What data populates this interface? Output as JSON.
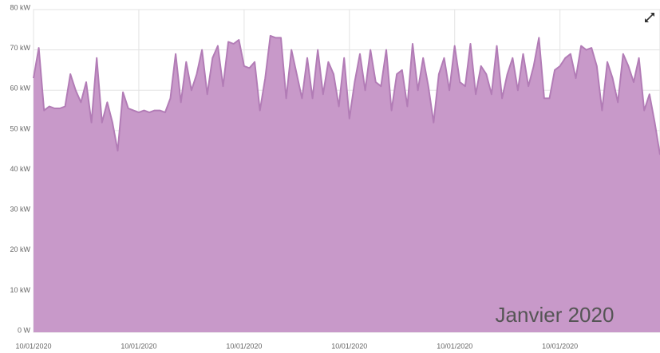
{
  "chart_data": {
    "type": "area",
    "annotation": "Janvier 2020",
    "color": "#c899c9",
    "line_color": "#b27cb6",
    "grid": true,
    "ylim": [
      0,
      80
    ],
    "yticks": [
      {
        "value": 0,
        "label": "0 W"
      },
      {
        "value": 10,
        "label": "10 kW"
      },
      {
        "value": 20,
        "label": "20 kW"
      },
      {
        "value": 30,
        "label": "30 kW"
      },
      {
        "value": 40,
        "label": "40 kW"
      },
      {
        "value": 50,
        "label": "50 kW"
      },
      {
        "value": 60,
        "label": "60 kW"
      },
      {
        "value": 70,
        "label": "70 kW"
      },
      {
        "value": 80,
        "label": "80 kW"
      }
    ],
    "categories": [
      "10/01/2020",
      null,
      null,
      null,
      null,
      null,
      null,
      null,
      null,
      null,
      null,
      null,
      null,
      null,
      null,
      null,
      null,
      null,
      null,
      null,
      "10/01/2020",
      null,
      null,
      null,
      null,
      null,
      null,
      null,
      null,
      null,
      null,
      null,
      null,
      null,
      null,
      null,
      null,
      null,
      null,
      null,
      "10/01/2020",
      null,
      null,
      null,
      null,
      null,
      null,
      null,
      null,
      null,
      null,
      null,
      null,
      null,
      null,
      null,
      null,
      null,
      null,
      null,
      "10/01/2020",
      null,
      null,
      null,
      null,
      null,
      null,
      null,
      null,
      null,
      null,
      null,
      null,
      null,
      null,
      null,
      null,
      null,
      null,
      null,
      "10/01/2020",
      null,
      null,
      null,
      null,
      null,
      null,
      null,
      null,
      null,
      null,
      null,
      null,
      null,
      null,
      null,
      null,
      null,
      null,
      null,
      "10/01/2020",
      null,
      null,
      null,
      null,
      null,
      null,
      null,
      null,
      null,
      null,
      null,
      null,
      null,
      null,
      null,
      null,
      null,
      null,
      null
    ],
    "values": [
      63,
      70.5,
      55,
      56,
      55.5,
      55.5,
      56,
      64,
      60,
      57,
      62,
      52,
      68,
      52,
      57,
      52,
      45,
      59.5,
      55.5,
      55,
      54.5,
      55,
      54.5,
      55,
      55,
      54.5,
      58,
      69,
      57,
      67,
      60,
      64,
      70,
      59,
      68,
      71,
      61,
      72,
      71.5,
      72.5,
      66,
      65.5,
      67,
      55,
      63,
      73.5,
      73,
      73,
      58,
      70,
      64,
      58,
      68,
      58,
      70,
      59,
      67,
      64,
      56,
      68,
      53,
      62,
      69,
      60,
      70,
      62,
      61,
      70,
      55,
      64,
      65,
      56,
      71.5,
      60,
      68,
      61,
      52,
      64,
      68,
      60,
      71,
      62,
      61,
      71.5,
      59,
      66,
      64,
      59,
      71,
      58,
      64,
      68,
      60,
      69,
      61,
      66,
      73,
      58,
      58,
      65,
      66,
      68,
      69,
      63,
      71,
      70,
      70.5,
      66,
      55,
      67,
      63,
      57,
      69,
      66,
      62,
      68,
      55,
      59,
      52,
      44
    ]
  }
}
